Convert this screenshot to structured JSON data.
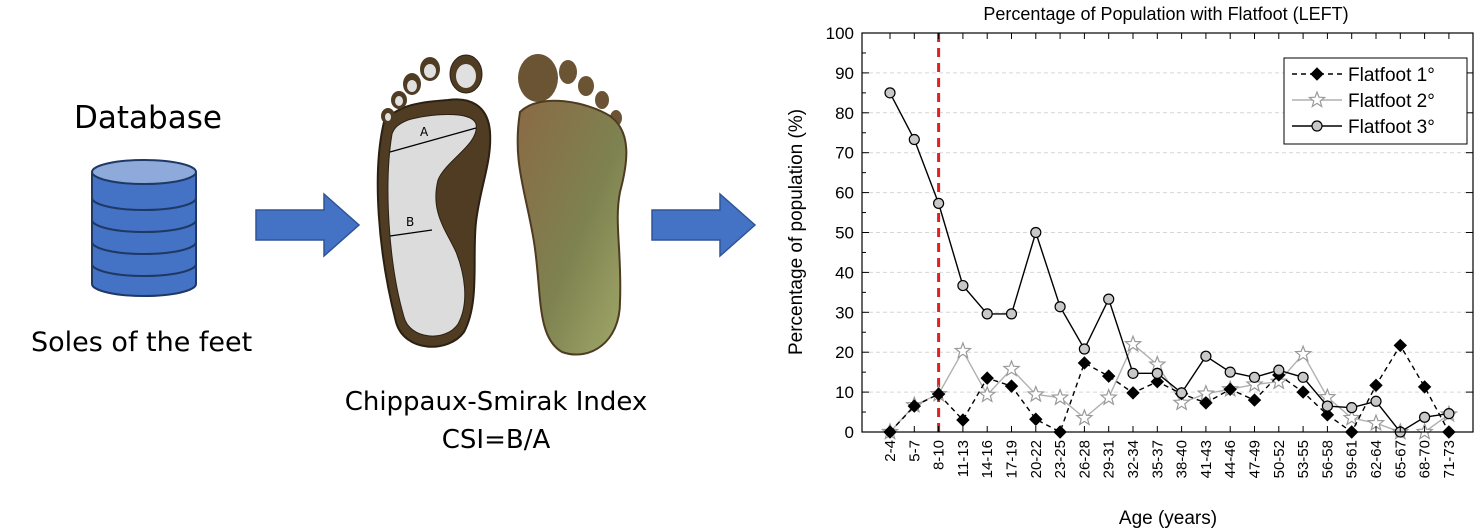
{
  "left_panel": {
    "database_title": "Database",
    "database_caption": "Soles of the feet",
    "database_icon": "database-cylinder-icon",
    "arrow_icon": "right-arrow-icon",
    "arrow_color": "#4472c4",
    "foot_label_a": "A",
    "foot_label_b": "B",
    "csi_caption_line1": "Chippaux-Smirak Index",
    "csi_caption_line2": "CSI=B/A"
  },
  "chart_data": {
    "type": "line",
    "title": "Percentage of Population with Flatfoot (LEFT)",
    "xlabel": "Age (years)",
    "ylabel": "Percentage of population (%)",
    "ylim": [
      0,
      100
    ],
    "yticks": [
      0,
      10,
      20,
      30,
      40,
      50,
      60,
      70,
      80,
      90,
      100
    ],
    "grid": "horizontal dashed",
    "legend_position": "top-right",
    "categories": [
      "2-4",
      "5-7",
      "8-10",
      "11-13",
      "14-16",
      "17-19",
      "20-22",
      "23-25",
      "26-28",
      "29-31",
      "32-34",
      "35-37",
      "38-40",
      "41-43",
      "44-46",
      "47-49",
      "50-52",
      "53-55",
      "56-58",
      "59-61",
      "62-64",
      "65-67",
      "68-70",
      "71-73"
    ],
    "reference_line": {
      "category": "8-10",
      "color": "#e02020",
      "style": "dashed"
    },
    "series": [
      {
        "name": "Flatfoot 1°",
        "marker": "diamond",
        "line": "dashed",
        "color": "#000000",
        "values": [
          0,
          6.5,
          9.5,
          3,
          13.5,
          11.5,
          3.2,
          0,
          17.3,
          14,
          9.8,
          12.6,
          9.6,
          7.3,
          10.7,
          8,
          14.3,
          10,
          4.3,
          0,
          11.7,
          21.7,
          11.3,
          0
        ]
      },
      {
        "name": "Flatfoot 2°",
        "marker": "star",
        "line": "solid",
        "color": "#b0b0b0",
        "values": [
          0,
          6.7,
          9.5,
          20.3,
          9.3,
          15.8,
          9.4,
          8.6,
          3.5,
          8.6,
          22,
          16.9,
          7.3,
          9.6,
          10.7,
          11.9,
          12.6,
          19.5,
          8.7,
          3.5,
          2.2,
          0,
          0,
          4.4
        ]
      },
      {
        "name": "Flatfoot 3°",
        "marker": "circle",
        "line": "solid",
        "color": "#000000",
        "values": [
          85,
          73.3,
          57.3,
          36.7,
          29.6,
          29.6,
          50,
          31.4,
          20.8,
          33.3,
          14.7,
          14.7,
          9.8,
          19,
          15,
          13.7,
          15.5,
          13.7,
          6.5,
          6.1,
          7.7,
          0,
          3.7,
          4.6
        ]
      }
    ]
  }
}
